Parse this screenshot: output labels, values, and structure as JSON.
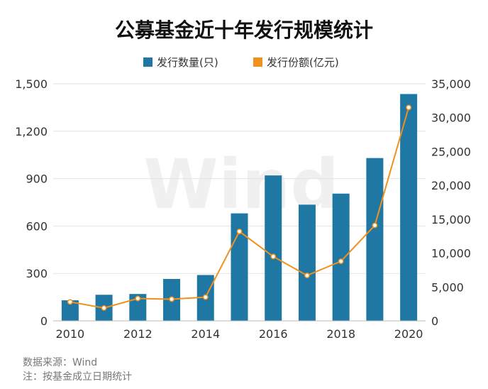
{
  "chart_data": {
    "type": "bar",
    "title": "公募基金近十年发行规模统计",
    "categories": [
      "2010",
      "2011",
      "2012",
      "2013",
      "2014",
      "2015",
      "2016",
      "2017",
      "2018",
      "2019",
      "2020"
    ],
    "x_tick_labels": [
      "2010",
      "2012",
      "2014",
      "2016",
      "2018",
      "2020"
    ],
    "series": [
      {
        "name": "发行数量(只)",
        "type": "bar",
        "axis": "left",
        "color": "#1f77a4",
        "values": [
          130,
          165,
          170,
          265,
          290,
          680,
          920,
          735,
          805,
          1030,
          1435
        ]
      },
      {
        "name": "发行份额(亿元)",
        "type": "line",
        "axis": "right",
        "color": "#f0911e",
        "values": [
          2800,
          1900,
          3300,
          3200,
          3500,
          13200,
          9500,
          6700,
          8800,
          14100,
          31500
        ]
      }
    ],
    "y_left": {
      "lim": [
        0,
        1500
      ],
      "ticks": [
        0,
        300,
        600,
        900,
        1200,
        1500
      ],
      "tick_labels": [
        "0",
        "300",
        "600",
        "900",
        "1,200",
        "1,500"
      ]
    },
    "y_right": {
      "lim": [
        0,
        35000
      ],
      "ticks": [
        0,
        5000,
        10000,
        15000,
        20000,
        25000,
        30000,
        35000
      ],
      "tick_labels": [
        "0",
        "5,000",
        "10,000",
        "15,000",
        "20,000",
        "25,000",
        "30,000",
        "35,000"
      ]
    },
    "legend": {
      "position": "top-right"
    },
    "grid": true,
    "watermark": "Wind"
  },
  "footer": {
    "source": "数据来源：Wind",
    "note": "注：按基金成立日期统计"
  }
}
